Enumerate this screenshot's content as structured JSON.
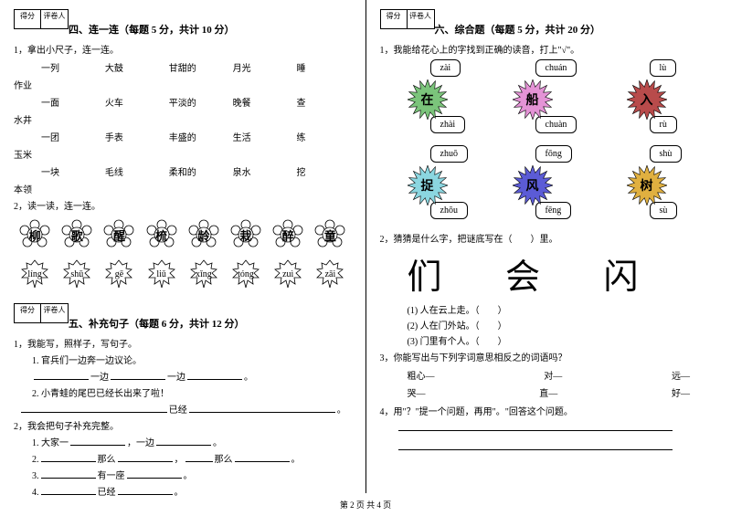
{
  "scorebox": {
    "c1": "得分",
    "c2": "评卷人"
  },
  "s4": {
    "title": "四、连一连（每题 5 分，共计 10 分）",
    "q1": "1，拿出小尺子，连一连。",
    "rows": [
      [
        "一列",
        "大鼓",
        "甘甜的",
        "月光",
        "睡"
      ],
      [
        "一面",
        "火车",
        "平淡的",
        "晚餐",
        "查"
      ],
      [
        "一团",
        "手表",
        "丰盛的",
        "生活",
        "练"
      ],
      [
        "一块",
        "毛线",
        "柔和的",
        "泉水",
        "挖"
      ]
    ],
    "prefixes": [
      "作业",
      "水井",
      "玉米",
      "本领"
    ],
    "q2": "2，读一读，连一连。",
    "flowers": [
      "柳",
      "歌",
      "醒",
      "梳",
      "龄",
      "栽",
      "醉",
      "童"
    ],
    "leaves": [
      "líng",
      "shū",
      "gē",
      "liǔ",
      "xǐng",
      "tóng",
      "zuì",
      "zāi"
    ]
  },
  "s5": {
    "title": "五、补充句子（每题 6 分，共计 12 分）",
    "q1": "1，我能写，照样子，写句子。",
    "q1a": "1. 官兵们一边奔一边议论。",
    "q1b_pre": "一边",
    "q1b_mid": "一边",
    "q1c": "2. 小青蛙的尾巴已经长出来了啦！",
    "q1c_suf": "已经",
    "q2": "2，我会把句子补充完整。",
    "lines": {
      "l1": "1. 大家一",
      "l1a": "，一边",
      "l1b": "。",
      "l2": "2.",
      "l2a": "那么",
      "l2b": "，",
      "l2c": "那么",
      "l2d": "。",
      "l3": "3.",
      "l3a": "有一座",
      "l3b": "。",
      "l4": "4.",
      "l4a": "已经",
      "l4b": "。"
    }
  },
  "s6": {
    "title": "六、综合题（每题 5 分，共计 20 分）",
    "q1": "1，我能给花心上的字找到正确的读音，打上\"√\"。",
    "groups": [
      {
        "char": "在",
        "color": "#7bc47b",
        "opts": [
          "zài",
          "zhài"
        ]
      },
      {
        "char": "船",
        "color": "#e493d6",
        "opts": [
          "chuán",
          "chuàn"
        ]
      },
      {
        "char": "入",
        "color": "#b84b4b",
        "opts": [
          "lù",
          "rù"
        ]
      },
      {
        "char": "捉",
        "color": "#8bd6e0",
        "opts": [
          "zhuō",
          "zhōu"
        ]
      },
      {
        "char": "风",
        "color": "#5b5bd6",
        "opts": [
          "fōng",
          "fēng"
        ]
      },
      {
        "char": "树",
        "color": "#e0b040",
        "opts": [
          "shù",
          "sù"
        ]
      }
    ],
    "q2": "2，猜猜是什么字，把谜底写在（　　）里。",
    "bigchars": "们 会 闪",
    "riddles": [
      "(1) 人在云上走。（　　）",
      "(2) 人在门外站。（　　）",
      "(3) 门里有个人。（　　）"
    ],
    "q3": "3，你能写出与下列字词意思相反之的词语吗？",
    "pairs": [
      [
        "粗心—",
        "对—",
        "远—"
      ],
      [
        "哭—",
        "直—",
        "好—"
      ]
    ],
    "q4": "4，用\"？\"提一个问题，再用\"。\"回答这个问题。"
  },
  "footer": "第 2 页  共 4 页"
}
